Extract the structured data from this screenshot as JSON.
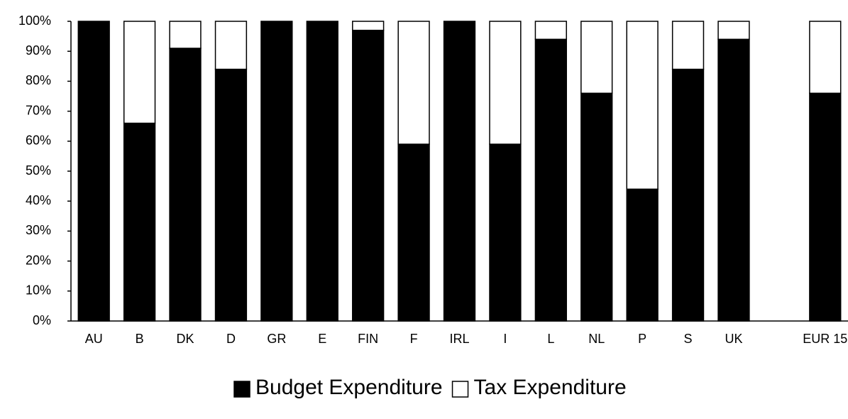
{
  "chart_data": {
    "type": "stacked_bar",
    "categories": [
      "AU",
      "B",
      "DK",
      "D",
      "GR",
      "E",
      "FIN",
      "F",
      "IRL",
      "I",
      "L",
      "NL",
      "P",
      "S",
      "UK",
      null,
      "EUR 15"
    ],
    "series": [
      {
        "name": "Budget Expenditure",
        "color": "#000000",
        "values": [
          100,
          66,
          91,
          84,
          100,
          100,
          97,
          59,
          100,
          59,
          94,
          76,
          44,
          84,
          94,
          null,
          76
        ]
      },
      {
        "name": "Tax Expenditure",
        "color": "#ffffff",
        "values": [
          0,
          34,
          9,
          16,
          0,
          0,
          3,
          41,
          0,
          41,
          6,
          24,
          56,
          16,
          6,
          null,
          24
        ]
      }
    ],
    "ylim": [
      0,
      100
    ],
    "yticks": [
      {
        "value": 0,
        "label": "0%"
      },
      {
        "value": 10,
        "label": "10%"
      },
      {
        "value": 20,
        "label": "20%"
      },
      {
        "value": 30,
        "label": "30%"
      },
      {
        "value": 40,
        "label": "40%"
      },
      {
        "value": 50,
        "label": "50%"
      },
      {
        "value": 60,
        "label": "60%"
      },
      {
        "value": 70,
        "label": "70%"
      },
      {
        "value": 80,
        "label": "80%"
      },
      {
        "value": 90,
        "label": "90%"
      },
      {
        "value": 100,
        "label": "100%"
      }
    ],
    "legend": "bottom"
  }
}
